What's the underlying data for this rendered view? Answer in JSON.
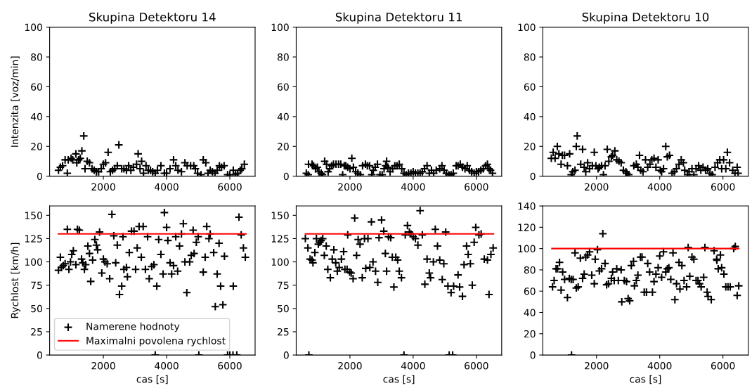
{
  "chart_data": [
    {
      "type": "scatter",
      "title": "Skupina Detektoru 14",
      "ylabel": "Intenzita [voz/min]",
      "xlim": [
        300,
        6800
      ],
      "ylim": [
        0,
        100
      ],
      "xticks": [
        2000,
        4000,
        6000
      ],
      "yticks": [
        0,
        20,
        40,
        60,
        80,
        100
      ],
      "marker": "cross",
      "grid": false,
      "legend": false,
      "series": [
        {
          "color": "#000000",
          "x": [
            580,
            640,
            710,
            790,
            860,
            890,
            980,
            1030,
            1130,
            1160,
            1220,
            1270,
            1320,
            1380,
            1420,
            1490,
            1560,
            1640,
            1710,
            1780,
            1850,
            1930,
            2000,
            2070,
            2150,
            2220,
            2290,
            2360,
            2440,
            2490,
            2580,
            2650,
            2730,
            2800,
            2870,
            2950,
            3050,
            3100,
            3160,
            3210,
            3270,
            3350,
            3420,
            3490,
            3560,
            3640,
            3710,
            3820,
            3930,
            4000,
            4110,
            4220,
            4290,
            4360,
            4470,
            4580,
            4650,
            4760,
            4860,
            4910,
            4980,
            5090,
            5160,
            5240,
            5310,
            5380,
            5450,
            5530,
            5600,
            5670,
            5740,
            5820,
            5930,
            6000,
            6110,
            6180,
            6250,
            6330,
            6380,
            6460
          ],
          "values": [
            4,
            6,
            7,
            11,
            2,
            11,
            12,
            11,
            15,
            9,
            11,
            12,
            17,
            27,
            5,
            10,
            9,
            5,
            4,
            3,
            3,
            5,
            8,
            9,
            16,
            3,
            4,
            5,
            7,
            21,
            5,
            5,
            4,
            7,
            4,
            6,
            8,
            15,
            5,
            10,
            2,
            7,
            4,
            4,
            3,
            2,
            4,
            7,
            2,
            2,
            5,
            11,
            7,
            4,
            3,
            9,
            7,
            7,
            7,
            5,
            2,
            1,
            11,
            9,
            2,
            4,
            3,
            2,
            4,
            7,
            6,
            7,
            1,
            1,
            4,
            1,
            2,
            4,
            5,
            8
          ]
        }
      ]
    },
    {
      "type": "scatter",
      "title": "Skupina Detektoru 11",
      "xlim": [
        300,
        6800
      ],
      "ylim": [
        0,
        100
      ],
      "xticks": [
        2000,
        4000,
        6000
      ],
      "yticks": [
        0,
        20,
        40,
        60,
        80,
        100
      ],
      "marker": "cross",
      "grid": false,
      "legend": false,
      "series": [
        {
          "color": "#000000",
          "x": [
            620,
            680,
            690,
            800,
            850,
            910,
            970,
            1020,
            1090,
            1130,
            1200,
            1260,
            1310,
            1360,
            1420,
            1480,
            1560,
            1640,
            1710,
            1770,
            1820,
            1870,
            1930,
            2000,
            2060,
            2110,
            2180,
            2250,
            2330,
            2400,
            2490,
            2550,
            2620,
            2690,
            2740,
            2800,
            2870,
            2950,
            3020,
            3080,
            3130,
            3160,
            3200,
            3270,
            3350,
            3420,
            3490,
            3560,
            3640,
            3710,
            3780,
            3850,
            3930,
            4000,
            4070,
            4150,
            4220,
            4290,
            4360,
            4440,
            4510,
            4580,
            4650,
            4730,
            4840,
            4910,
            4980,
            5050,
            5130,
            5200,
            5270,
            5360,
            5420,
            5490,
            5560,
            5640,
            5710,
            5780,
            5850,
            5930,
            6000,
            6070,
            6140,
            6220,
            6290,
            6350,
            6400,
            6450,
            6510
          ],
          "values": [
            2,
            1,
            8,
            8,
            7,
            5,
            6,
            3,
            2,
            1,
            10,
            8,
            3,
            5,
            7,
            8,
            8,
            8,
            8,
            1,
            7,
            7,
            6,
            5,
            12,
            6,
            3,
            2,
            1,
            7,
            8,
            7,
            7,
            1,
            4,
            6,
            8,
            1,
            1,
            5,
            7,
            10,
            6,
            3,
            5,
            7,
            7,
            8,
            5,
            2,
            1,
            2,
            2,
            3,
            2,
            2,
            2,
            3,
            5,
            7,
            2,
            4,
            2,
            4,
            5,
            7,
            4,
            2,
            1,
            1,
            2,
            7,
            7,
            8,
            6,
            5,
            7,
            4,
            3,
            2,
            3,
            3,
            4,
            5,
            7,
            8,
            5,
            4,
            2
          ]
        }
      ]
    },
    {
      "type": "scatter",
      "title": "Skupina Detektoru 10",
      "xlim": [
        300,
        6800
      ],
      "ylim": [
        0,
        100
      ],
      "xticks": [
        2000,
        4000,
        6000
      ],
      "yticks": [
        0,
        20,
        40,
        60,
        80,
        100
      ],
      "marker": "cross",
      "grid": false,
      "legend": false,
      "series": [
        {
          "color": "#000000",
          "x": [
            570,
            630,
            690,
            760,
            810,
            880,
            920,
            990,
            1080,
            1150,
            1200,
            1250,
            1320,
            1360,
            1390,
            1500,
            1560,
            1610,
            1660,
            1720,
            1780,
            1870,
            1930,
            1980,
            2050,
            2090,
            2160,
            2220,
            2270,
            2340,
            2390,
            2470,
            2510,
            2580,
            2640,
            2710,
            2780,
            2850,
            2930,
            2960,
            3020,
            3180,
            3260,
            3310,
            3360,
            3400,
            3470,
            3550,
            3620,
            3690,
            3750,
            3820,
            3880,
            3950,
            4020,
            4060,
            4120,
            4190,
            4240,
            4310,
            4390,
            4460,
            4530,
            4610,
            4680,
            4750,
            4790,
            4880,
            4930,
            5020,
            5080,
            5150,
            5230,
            5300,
            5370,
            5450,
            5520,
            5590,
            5660,
            5750,
            5830,
            5900,
            5960,
            6020,
            6090,
            6140,
            6210,
            6310,
            6380,
            6450,
            6480
          ],
          "values": [
            12,
            16,
            12,
            20,
            15,
            8,
            14,
            14,
            7,
            15,
            1,
            3,
            4,
            20,
            27,
            8,
            18,
            6,
            3,
            9,
            5,
            7,
            16,
            7,
            5,
            6,
            7,
            1,
            7,
            18,
            10,
            13,
            14,
            17,
            11,
            10,
            9,
            4,
            3,
            2,
            1,
            7,
            8,
            6,
            14,
            4,
            3,
            11,
            6,
            8,
            11,
            12,
            6,
            11,
            4,
            3,
            5,
            20,
            13,
            14,
            2,
            3,
            5,
            8,
            11,
            9,
            4,
            1,
            3,
            5,
            1,
            5,
            7,
            4,
            6,
            4,
            5,
            2,
            1,
            6,
            9,
            11,
            5,
            11,
            5,
            16,
            9,
            4,
            2,
            6,
            2
          ]
        }
      ]
    },
    {
      "type": "scatter",
      "xlabel": "cas [s]",
      "ylabel": "Rychlost [km/h]",
      "xlim": [
        300,
        6800
      ],
      "ylim": [
        0,
        160
      ],
      "xticks": [
        2000,
        4000,
        6000
      ],
      "yticks": [
        0,
        25,
        50,
        75,
        100,
        125,
        150
      ],
      "marker": "cross",
      "grid": false,
      "legend": "bottom left",
      "series": [
        {
          "name": "Namerene hodnoty",
          "color": "#000000",
          "x": [
            580,
            640,
            670,
            730,
            790,
            860,
            910,
            960,
            1000,
            1050,
            1130,
            1180,
            1240,
            1310,
            1350,
            1400,
            1440,
            1510,
            1560,
            1600,
            1660,
            1730,
            1780,
            1820,
            1880,
            1950,
            2000,
            2050,
            2120,
            2200,
            2270,
            2330,
            2390,
            2440,
            2510,
            2580,
            2620,
            2650,
            2730,
            2760,
            2820,
            2890,
            2970,
            3020,
            3070,
            3130,
            3200,
            3260,
            3330,
            3400,
            3450,
            3530,
            3600,
            3690,
            3750,
            3820,
            3890,
            3930,
            4000,
            4040,
            4110,
            4160,
            4220,
            4290,
            4350,
            4410,
            4470,
            4530,
            4580,
            4640,
            4730,
            4780,
            4840,
            4870,
            4940,
            5000,
            5160,
            5220,
            5270,
            5340,
            5380,
            5490,
            5540,
            5600,
            5660,
            5710,
            5780,
            5830,
            6110,
            6290,
            6360,
            6430,
            6490,
            3640,
            5020,
            5930,
            6000,
            6100,
            6220
          ],
          "values": [
            91,
            105,
            94,
            96,
            98,
            135,
            92,
            100,
            108,
            112,
            97,
            135,
            134,
            103,
            99,
            92,
            97,
            117,
            109,
            79,
            102,
            124,
            118,
            113,
            132,
            88,
            103,
            100,
            98,
            82,
            151,
            128,
            99,
            118,
            65,
            74,
            127,
            92,
            94,
            84,
            110,
            133,
            133,
            92,
            115,
            138,
            105,
            138,
            92,
            127,
            82,
            95,
            97,
            74,
            124,
            108,
            87,
            153,
            137,
            123,
            99,
            87,
            96,
            127,
            90,
            117,
            130,
            141,
            100,
            67,
            100,
            107,
            134,
            109,
            121,
            127,
            89,
            105,
            138,
            125,
            130,
            110,
            52,
            87,
            120,
            74,
            54,
            106,
            74,
            148,
            129,
            115,
            105,
            0,
            0,
            0,
            0,
            0,
            0
          ]
        },
        {
          "name": "Maximalni povolena rychlost",
          "type": "line",
          "marker": "none",
          "color": "#ff0000",
          "x": [
            580,
            6510
          ],
          "values": [
            130,
            130
          ]
        }
      ]
    },
    {
      "type": "scatter",
      "xlabel": "cas [s]",
      "xlim": [
        300,
        6800
      ],
      "ylim": [
        0,
        160
      ],
      "xticks": [
        2000,
        4000,
        6000
      ],
      "yticks": [
        0,
        25,
        50,
        75,
        100,
        125,
        150
      ],
      "marker": "cross",
      "grid": false,
      "legend": false,
      "series": [
        {
          "color": "#000000",
          "x": [
            590,
            670,
            740,
            800,
            830,
            890,
            940,
            1000,
            1050,
            1090,
            1140,
            1190,
            1250,
            1300,
            1380,
            1440,
            1490,
            1550,
            1600,
            1660,
            1730,
            1800,
            1840,
            1910,
            1930,
            1990,
            2040,
            2100,
            2150,
            2210,
            2260,
            2320,
            2390,
            2460,
            2500,
            2570,
            2630,
            2680,
            2730,
            2810,
            2880,
            2920,
            3000,
            3070,
            3120,
            3160,
            3220,
            3290,
            3340,
            3390,
            3450,
            3510,
            3560,
            3630,
            3750,
            3820,
            3880,
            3930,
            4000,
            4070,
            4150,
            4220,
            4290,
            4370,
            4440,
            4510,
            4550,
            4640,
            4700,
            4770,
            4840,
            4920,
            4970,
            5030,
            5100,
            5200,
            5280,
            5420,
            5470,
            5560,
            5610,
            5690,
            5740,
            5810,
            5870,
            5930,
            5980,
            6080,
            6150,
            6250,
            6350,
            6400,
            6460,
            6530,
            700,
            3710,
            5140,
            5250
          ],
          "values": [
            125,
            115,
            103,
            102,
            99,
            110,
            125,
            119,
            121,
            123,
            125,
            107,
            117,
            92,
            83,
            103,
            113,
            99,
            90,
            94,
            103,
            111,
            92,
            92,
            129,
            89,
            88,
            82,
            147,
            107,
            124,
            119,
            83,
            125,
            93,
            125,
            94,
            143,
            100,
            90,
            78,
            126,
            145,
            133,
            109,
            90,
            127,
            126,
            105,
            73,
            105,
            102,
            90,
            83,
            129,
            139,
            132,
            130,
            127,
            125,
            118,
            155,
            129,
            76,
            103,
            88,
            83,
            100,
            135,
            117,
            102,
            81,
            98,
            132,
            74,
            67,
            74,
            86,
            73,
            63,
            97,
            117,
            108,
            98,
            75,
            121,
            137,
            129,
            130,
            103,
            102,
            65,
            108,
            115,
            0,
            0,
            0,
            0
          ]
        },
        {
          "type": "line",
          "marker": "none",
          "color": "#ff0000",
          "x": [
            590,
            6540
          ],
          "values": [
            130,
            130
          ]
        }
      ]
    },
    {
      "type": "scatter",
      "xlabel": "cas [s]",
      "xlim": [
        300,
        6800
      ],
      "ylim": [
        0,
        140
      ],
      "xticks": [
        2000,
        4000,
        6000
      ],
      "yticks": [
        0,
        20,
        40,
        60,
        80,
        100,
        120,
        140
      ],
      "marker": "cross",
      "grid": false,
      "legend": false,
      "series": [
        {
          "color": "#000000",
          "x": [
            610,
            660,
            720,
            770,
            830,
            880,
            930,
            990,
            1080,
            1140,
            1200,
            1260,
            1320,
            1360,
            1420,
            1490,
            1560,
            1610,
            1660,
            1720,
            1780,
            1850,
            1930,
            1960,
            2030,
            2090,
            2160,
            2200,
            2270,
            2320,
            2380,
            2470,
            2510,
            2560,
            2640,
            2690,
            2780,
            2800,
            2880,
            2950,
            3000,
            3050,
            3100,
            3170,
            3200,
            3260,
            3310,
            3390,
            3440,
            3510,
            3580,
            3620,
            3680,
            3770,
            3820,
            3880,
            3950,
            4000,
            4060,
            4120,
            4190,
            4240,
            4290,
            4350,
            4420,
            4480,
            4530,
            4610,
            4640,
            4700,
            4770,
            4850,
            4900,
            4950,
            5020,
            5080,
            5150,
            5210,
            5260,
            5310,
            5390,
            5430,
            5500,
            5530,
            5630,
            5720,
            5800,
            5810,
            5850,
            5920,
            5960,
            6030,
            6090,
            6160,
            6230,
            6340,
            6390,
            6450,
            6500,
            1210
          ],
          "values": [
            64,
            70,
            81,
            81,
            87,
            61,
            78,
            71,
            54,
            72,
            71,
            71,
            96,
            63,
            64,
            91,
            72,
            76,
            92,
            94,
            97,
            75,
            67,
            90,
            99,
            79,
            81,
            114,
            86,
            66,
            67,
            72,
            78,
            70,
            81,
            70,
            80,
            50,
            70,
            69,
            53,
            51,
            84,
            88,
            65,
            70,
            75,
            92,
            92,
            59,
            59,
            86,
            78,
            59,
            69,
            76,
            82,
            93,
            73,
            97,
            78,
            81,
            82,
            71,
            96,
            52,
            67,
            87,
            62,
            84,
            70,
            64,
            101,
            74,
            92,
            90,
            70,
            70,
            67,
            64,
            73,
            101,
            59,
            55,
            52,
            98,
            90,
            89,
            81,
            94,
            82,
            76,
            64,
            64,
            64,
            100,
            102,
            56,
            65,
            0
          ]
        },
        {
          "type": "line",
          "marker": "none",
          "color": "#ff0000",
          "x": [
            590,
            6500
          ],
          "values": [
            100,
            100
          ]
        }
      ]
    }
  ]
}
